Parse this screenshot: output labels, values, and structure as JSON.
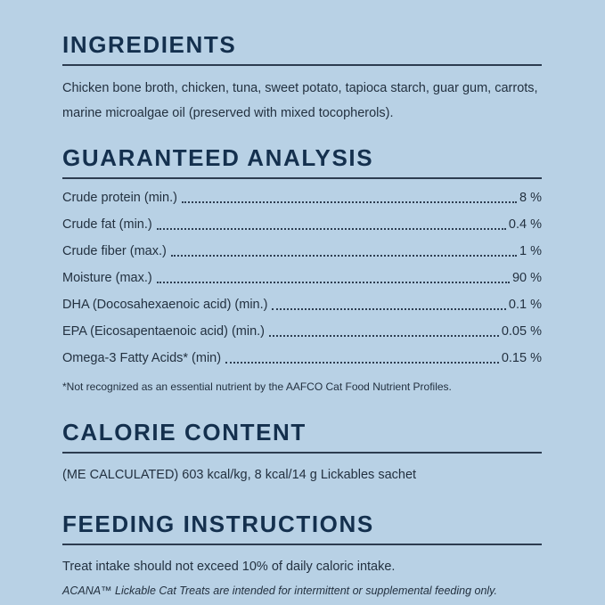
{
  "colors": {
    "background": "#b8d1e5",
    "heading": "#14304e",
    "body_text": "#233140",
    "rule": "#2c3c50"
  },
  "sections": {
    "ingredients": {
      "title": "INGREDIENTS",
      "body": "Chicken bone broth, chicken, tuna, sweet potato, tapioca starch, guar gum, carrots, marine microalgae oil (preserved with mixed tocopherols)."
    },
    "guaranteed_analysis": {
      "title": "GUARANTEED ANALYSIS",
      "rows": [
        {
          "label": "Crude protein (min.)",
          "value": "8 %"
        },
        {
          "label": "Crude fat (min.)",
          "value": "0.4 %"
        },
        {
          "label": "Crude fiber (max.)",
          "value": "1 %"
        },
        {
          "label": "Moisture (max.)",
          "value": "90 %"
        },
        {
          "label": "DHA (Docosahexaenoic acid) (min.)",
          "value": "0.1 %"
        },
        {
          "label": "EPA (Eicosapentaenoic acid) (min.)",
          "value": "0.05 %"
        },
        {
          "label": "Omega-3 Fatty Acids* (min)",
          "value": "0.15 %"
        }
      ],
      "footnote": "*Not recognized as an essential nutrient by the AAFCO Cat Food Nutrient Profiles."
    },
    "calorie_content": {
      "title": "CALORIE CONTENT",
      "body": "(ME CALCULATED) 603 kcal/kg, 8 kcal/14 g Lickables sachet"
    },
    "feeding_instructions": {
      "title": "FEEDING INSTRUCTIONS",
      "body": "Treat intake should not exceed 10% of daily caloric intake.",
      "note": "ACANA™ Lickable Cat Treats are intended for intermittent or supplemental feeding only."
    }
  }
}
